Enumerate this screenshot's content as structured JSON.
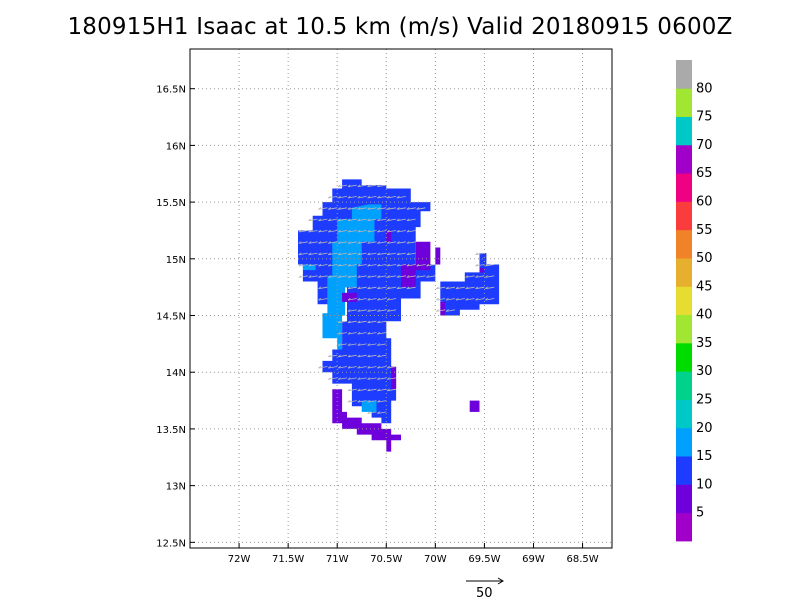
{
  "title": "180915H1 Isaac at 10.5 km (m/s) Valid 20180915 0600Z",
  "map": {
    "lon_range": [
      -72.5,
      -68.2
    ],
    "lat_range": [
      12.45,
      16.85
    ],
    "x_ticks": [
      {
        "value": -72,
        "label": "72W"
      },
      {
        "value": -71.5,
        "label": "71.5W"
      },
      {
        "value": -71,
        "label": "71W"
      },
      {
        "value": -70.5,
        "label": "70.5W"
      },
      {
        "value": -70,
        "label": "70W"
      },
      {
        "value": -69.5,
        "label": "69.5W"
      },
      {
        "value": -69,
        "label": "69W"
      },
      {
        "value": -68.5,
        "label": "68.5W"
      }
    ],
    "y_ticks": [
      {
        "value": 12.5,
        "label": "12.5N"
      },
      {
        "value": 13,
        "label": "13N"
      },
      {
        "value": 13.5,
        "label": "13.5N"
      },
      {
        "value": 14,
        "label": "14N"
      },
      {
        "value": 14.5,
        "label": "14.5N"
      },
      {
        "value": 15,
        "label": "15N"
      },
      {
        "value": 15.5,
        "label": "15.5N"
      },
      {
        "value": 16,
        "label": "16N"
      },
      {
        "value": 16.5,
        "label": "16.5N"
      }
    ],
    "grid": true
  },
  "colorbar": {
    "labels": [
      "5",
      "10",
      "15",
      "20",
      "25",
      "30",
      "35",
      "40",
      "45",
      "50",
      "55",
      "60",
      "65",
      "70",
      "75",
      "80"
    ],
    "colors": [
      "#a000c8",
      "#6e00dc",
      "#1e3cff",
      "#00a0ff",
      "#00c8c8",
      "#00d28c",
      "#00dc00",
      "#a0e632",
      "#e6dc32",
      "#e6af2d",
      "#f08228",
      "#fa3c3c",
      "#f00082",
      "#a000c8",
      "#00c8c8",
      "#a0e632",
      "#aaaaaa"
    ]
  },
  "reference_vector": {
    "label": "50"
  },
  "chart_data": {
    "type": "heatmap",
    "title": "180915H1 Isaac at 10.5 km (m/s) Valid 20180915 0600Z",
    "xlabel": "",
    "ylabel": "",
    "xlim": [
      -72.5,
      -68.2
    ],
    "ylim": [
      12.45,
      16.85
    ],
    "units": "m/s",
    "regions": [
      {
        "class": 15,
        "color": "#1e3cff",
        "polygon": [
          [
            -70.95,
            15.7
          ],
          [
            -70.75,
            15.7
          ],
          [
            -70.75,
            15.65
          ],
          [
            -70.5,
            15.65
          ],
          [
            -70.5,
            15.62
          ],
          [
            -70.25,
            15.62
          ],
          [
            -70.25,
            15.5
          ],
          [
            -70.05,
            15.5
          ],
          [
            -70.05,
            15.42
          ],
          [
            -70.15,
            15.42
          ],
          [
            -70.15,
            15.28
          ],
          [
            -70.2,
            15.28
          ],
          [
            -70.2,
            14.95
          ],
          [
            -70.0,
            14.95
          ],
          [
            -70.0,
            14.8
          ],
          [
            -70.15,
            14.8
          ],
          [
            -70.15,
            14.65
          ],
          [
            -70.35,
            14.65
          ],
          [
            -70.35,
            14.45
          ],
          [
            -70.5,
            14.45
          ],
          [
            -70.5,
            14.3
          ],
          [
            -70.45,
            14.3
          ],
          [
            -70.45,
            14.05
          ],
          [
            -70.4,
            14.05
          ],
          [
            -70.4,
            13.75
          ],
          [
            -70.45,
            13.75
          ],
          [
            -70.45,
            13.55
          ],
          [
            -70.55,
            13.55
          ],
          [
            -70.55,
            13.6
          ],
          [
            -70.65,
            13.6
          ],
          [
            -70.65,
            13.7
          ],
          [
            -70.85,
            13.7
          ],
          [
            -70.85,
            13.9
          ],
          [
            -71.05,
            13.9
          ],
          [
            -71.05,
            14.0
          ],
          [
            -71.15,
            14.0
          ],
          [
            -71.15,
            14.1
          ],
          [
            -71.05,
            14.1
          ],
          [
            -71.05,
            14.2
          ],
          [
            -70.95,
            14.2
          ],
          [
            -70.95,
            14.45
          ],
          [
            -70.9,
            14.45
          ],
          [
            -70.9,
            14.75
          ],
          [
            -71.05,
            14.75
          ],
          [
            -71.05,
            14.6
          ],
          [
            -71.2,
            14.6
          ],
          [
            -71.2,
            14.8
          ],
          [
            -71.35,
            14.8
          ],
          [
            -71.35,
            14.95
          ],
          [
            -71.4,
            14.95
          ],
          [
            -71.4,
            15.25
          ],
          [
            -71.25,
            15.25
          ],
          [
            -71.25,
            15.38
          ],
          [
            -71.15,
            15.38
          ],
          [
            -71.15,
            15.5
          ],
          [
            -71.05,
            15.5
          ],
          [
            -71.05,
            15.62
          ],
          [
            -70.95,
            15.62
          ]
        ]
      },
      {
        "class": 15,
        "color": "#1e3cff",
        "polygon": [
          [
            -69.95,
            14.8
          ],
          [
            -69.7,
            14.8
          ],
          [
            -69.7,
            14.88
          ],
          [
            -69.55,
            14.88
          ],
          [
            -69.55,
            15.05
          ],
          [
            -69.48,
            15.05
          ],
          [
            -69.48,
            14.95
          ],
          [
            -69.35,
            14.95
          ],
          [
            -69.35,
            14.6
          ],
          [
            -69.55,
            14.6
          ],
          [
            -69.55,
            14.55
          ],
          [
            -69.75,
            14.55
          ],
          [
            -69.75,
            14.5
          ],
          [
            -69.92,
            14.5
          ],
          [
            -69.92,
            14.62
          ],
          [
            -69.95,
            14.62
          ]
        ]
      },
      {
        "class": 20,
        "color": "#00a0ff",
        "polygon": [
          [
            -70.68,
            15.48
          ],
          [
            -70.55,
            15.48
          ],
          [
            -70.55,
            15.35
          ],
          [
            -70.62,
            15.35
          ],
          [
            -70.62,
            15.15
          ],
          [
            -70.75,
            15.15
          ],
          [
            -70.75,
            14.95
          ],
          [
            -70.8,
            14.95
          ],
          [
            -70.8,
            14.75
          ],
          [
            -70.92,
            14.75
          ],
          [
            -70.92,
            14.5
          ],
          [
            -70.95,
            14.5
          ],
          [
            -70.95,
            14.2
          ],
          [
            -71.0,
            14.2
          ],
          [
            -71.0,
            14.3
          ],
          [
            -71.15,
            14.3
          ],
          [
            -71.15,
            14.52
          ],
          [
            -71.1,
            14.52
          ],
          [
            -71.1,
            14.85
          ],
          [
            -71.05,
            14.85
          ],
          [
            -71.05,
            15.15
          ],
          [
            -71.0,
            15.15
          ],
          [
            -71.0,
            15.35
          ],
          [
            -70.85,
            15.35
          ],
          [
            -70.85,
            15.45
          ]
        ]
      },
      {
        "class": 20,
        "color": "#00a0ff",
        "polygon": [
          [
            -71.1,
            14.78
          ],
          [
            -70.95,
            14.78
          ],
          [
            -70.95,
            14.6
          ],
          [
            -71.1,
            14.6
          ]
        ]
      },
      {
        "class": 20,
        "color": "#00a0ff",
        "polygon": [
          [
            -71.35,
            14.95
          ],
          [
            -71.22,
            14.95
          ],
          [
            -71.22,
            14.9
          ],
          [
            -71.35,
            14.9
          ]
        ]
      },
      {
        "class": 20,
        "color": "#00a0ff",
        "polygon": [
          [
            -70.75,
            13.75
          ],
          [
            -70.6,
            13.75
          ],
          [
            -70.6,
            13.65
          ],
          [
            -70.75,
            13.65
          ]
        ]
      },
      {
        "class": 10,
        "color": "#6e00dc",
        "polygon": [
          [
            -70.95,
            14.7
          ],
          [
            -70.8,
            14.7
          ],
          [
            -70.8,
            14.62
          ],
          [
            -70.95,
            14.62
          ]
        ]
      },
      {
        "class": 10,
        "color": "#6e00dc",
        "polygon": [
          [
            -70.5,
            15.25
          ],
          [
            -70.45,
            15.25
          ],
          [
            -70.45,
            15.15
          ],
          [
            -70.5,
            15.15
          ]
        ]
      },
      {
        "class": 10,
        "color": "#6e00dc",
        "polygon": [
          [
            -70.2,
            15.15
          ],
          [
            -70.05,
            15.15
          ],
          [
            -70.05,
            14.9
          ],
          [
            -70.2,
            14.9
          ],
          [
            -70.2,
            14.75
          ],
          [
            -70.35,
            14.75
          ],
          [
            -70.35,
            14.95
          ],
          [
            -70.2,
            14.95
          ]
        ]
      },
      {
        "class": 10,
        "color": "#6e00dc",
        "polygon": [
          [
            -70.0,
            15.1
          ],
          [
            -69.95,
            15.1
          ],
          [
            -69.95,
            14.95
          ],
          [
            -70.0,
            14.95
          ]
        ]
      },
      {
        "class": 10,
        "color": "#6e00dc",
        "polygon": [
          [
            -69.95,
            14.62
          ],
          [
            -69.9,
            14.62
          ],
          [
            -69.9,
            14.5
          ],
          [
            -69.95,
            14.5
          ]
        ]
      },
      {
        "class": 10,
        "color": "#6e00dc",
        "polygon": [
          [
            -69.55,
            14.92
          ],
          [
            -69.5,
            14.92
          ],
          [
            -69.5,
            14.88
          ],
          [
            -69.55,
            14.88
          ]
        ]
      },
      {
        "class": 10,
        "color": "#6e00dc",
        "polygon": [
          [
            -70.45,
            14.05
          ],
          [
            -70.4,
            14.05
          ],
          [
            -70.4,
            13.85
          ],
          [
            -70.45,
            13.85
          ]
        ]
      },
      {
        "class": 10,
        "color": "#6e00dc",
        "polygon": [
          [
            -71.05,
            13.85
          ],
          [
            -70.95,
            13.85
          ],
          [
            -70.95,
            13.65
          ],
          [
            -70.9,
            13.65
          ],
          [
            -70.9,
            13.6
          ],
          [
            -70.75,
            13.6
          ],
          [
            -70.75,
            13.55
          ],
          [
            -70.55,
            13.55
          ],
          [
            -70.55,
            13.5
          ],
          [
            -70.45,
            13.5
          ],
          [
            -70.45,
            13.45
          ],
          [
            -70.4,
            13.45
          ],
          [
            -70.4,
            13.45
          ],
          [
            -70.35,
            13.45
          ],
          [
            -70.35,
            13.4
          ],
          [
            -70.45,
            13.4
          ],
          [
            -70.45,
            13.3
          ],
          [
            -70.5,
            13.3
          ],
          [
            -70.5,
            13.4
          ],
          [
            -70.65,
            13.4
          ],
          [
            -70.65,
            13.45
          ],
          [
            -70.8,
            13.45
          ],
          [
            -70.8,
            13.5
          ],
          [
            -70.95,
            13.5
          ],
          [
            -70.95,
            13.55
          ],
          [
            -71.05,
            13.55
          ]
        ]
      },
      {
        "class": 10,
        "color": "#6e00dc",
        "polygon": [
          [
            -69.65,
            13.75
          ],
          [
            -69.55,
            13.75
          ],
          [
            -69.55,
            13.65
          ],
          [
            -69.65,
            13.65
          ]
        ]
      }
    ],
    "vectors_direction_deg_from_east": 190,
    "vector_grid": {
      "lon_step": 0.1,
      "lat_step": 0.1,
      "sampled_within": "colored regions"
    }
  }
}
